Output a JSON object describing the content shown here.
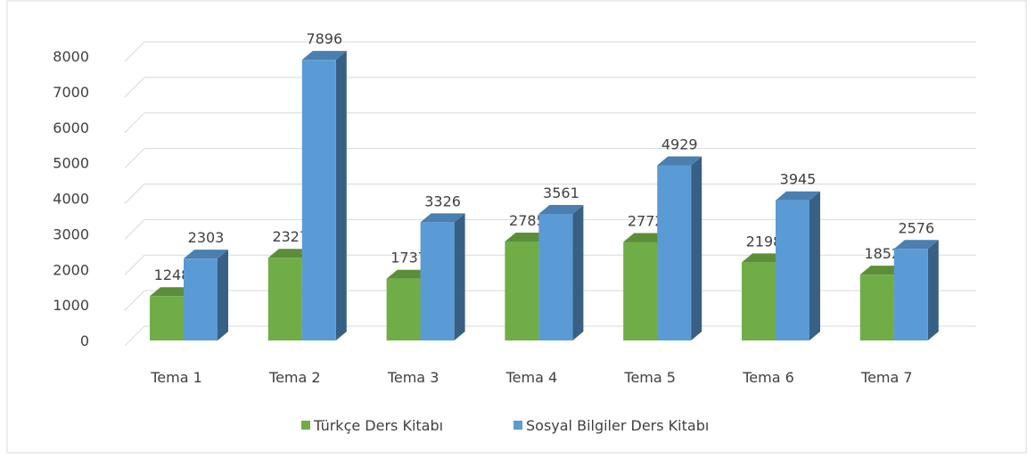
{
  "chart_data": {
    "type": "bar3d",
    "categories": [
      "Tema 1",
      "Tema 2",
      "Tema 3",
      "Tema 4",
      "Tema 5",
      "Tema 6",
      "Tema 7"
    ],
    "series": [
      {
        "name": "Türkçe Ders Kitabı",
        "color": "#70ad47",
        "values": [
          1248,
          2327,
          1737,
          2785,
          2772,
          2198,
          1852
        ]
      },
      {
        "name": "Sosyal Bilgiler Ders Kitabı",
        "color": "#5b9bd5",
        "values": [
          2303,
          7896,
          3326,
          3561,
          4929,
          3945,
          2576
        ]
      }
    ],
    "ylim": [
      0,
      8000
    ],
    "yticks": [
      0,
      1000,
      2000,
      3000,
      4000,
      5000,
      6000,
      7000,
      8000
    ],
    "grid": true,
    "legend": "bottom"
  }
}
